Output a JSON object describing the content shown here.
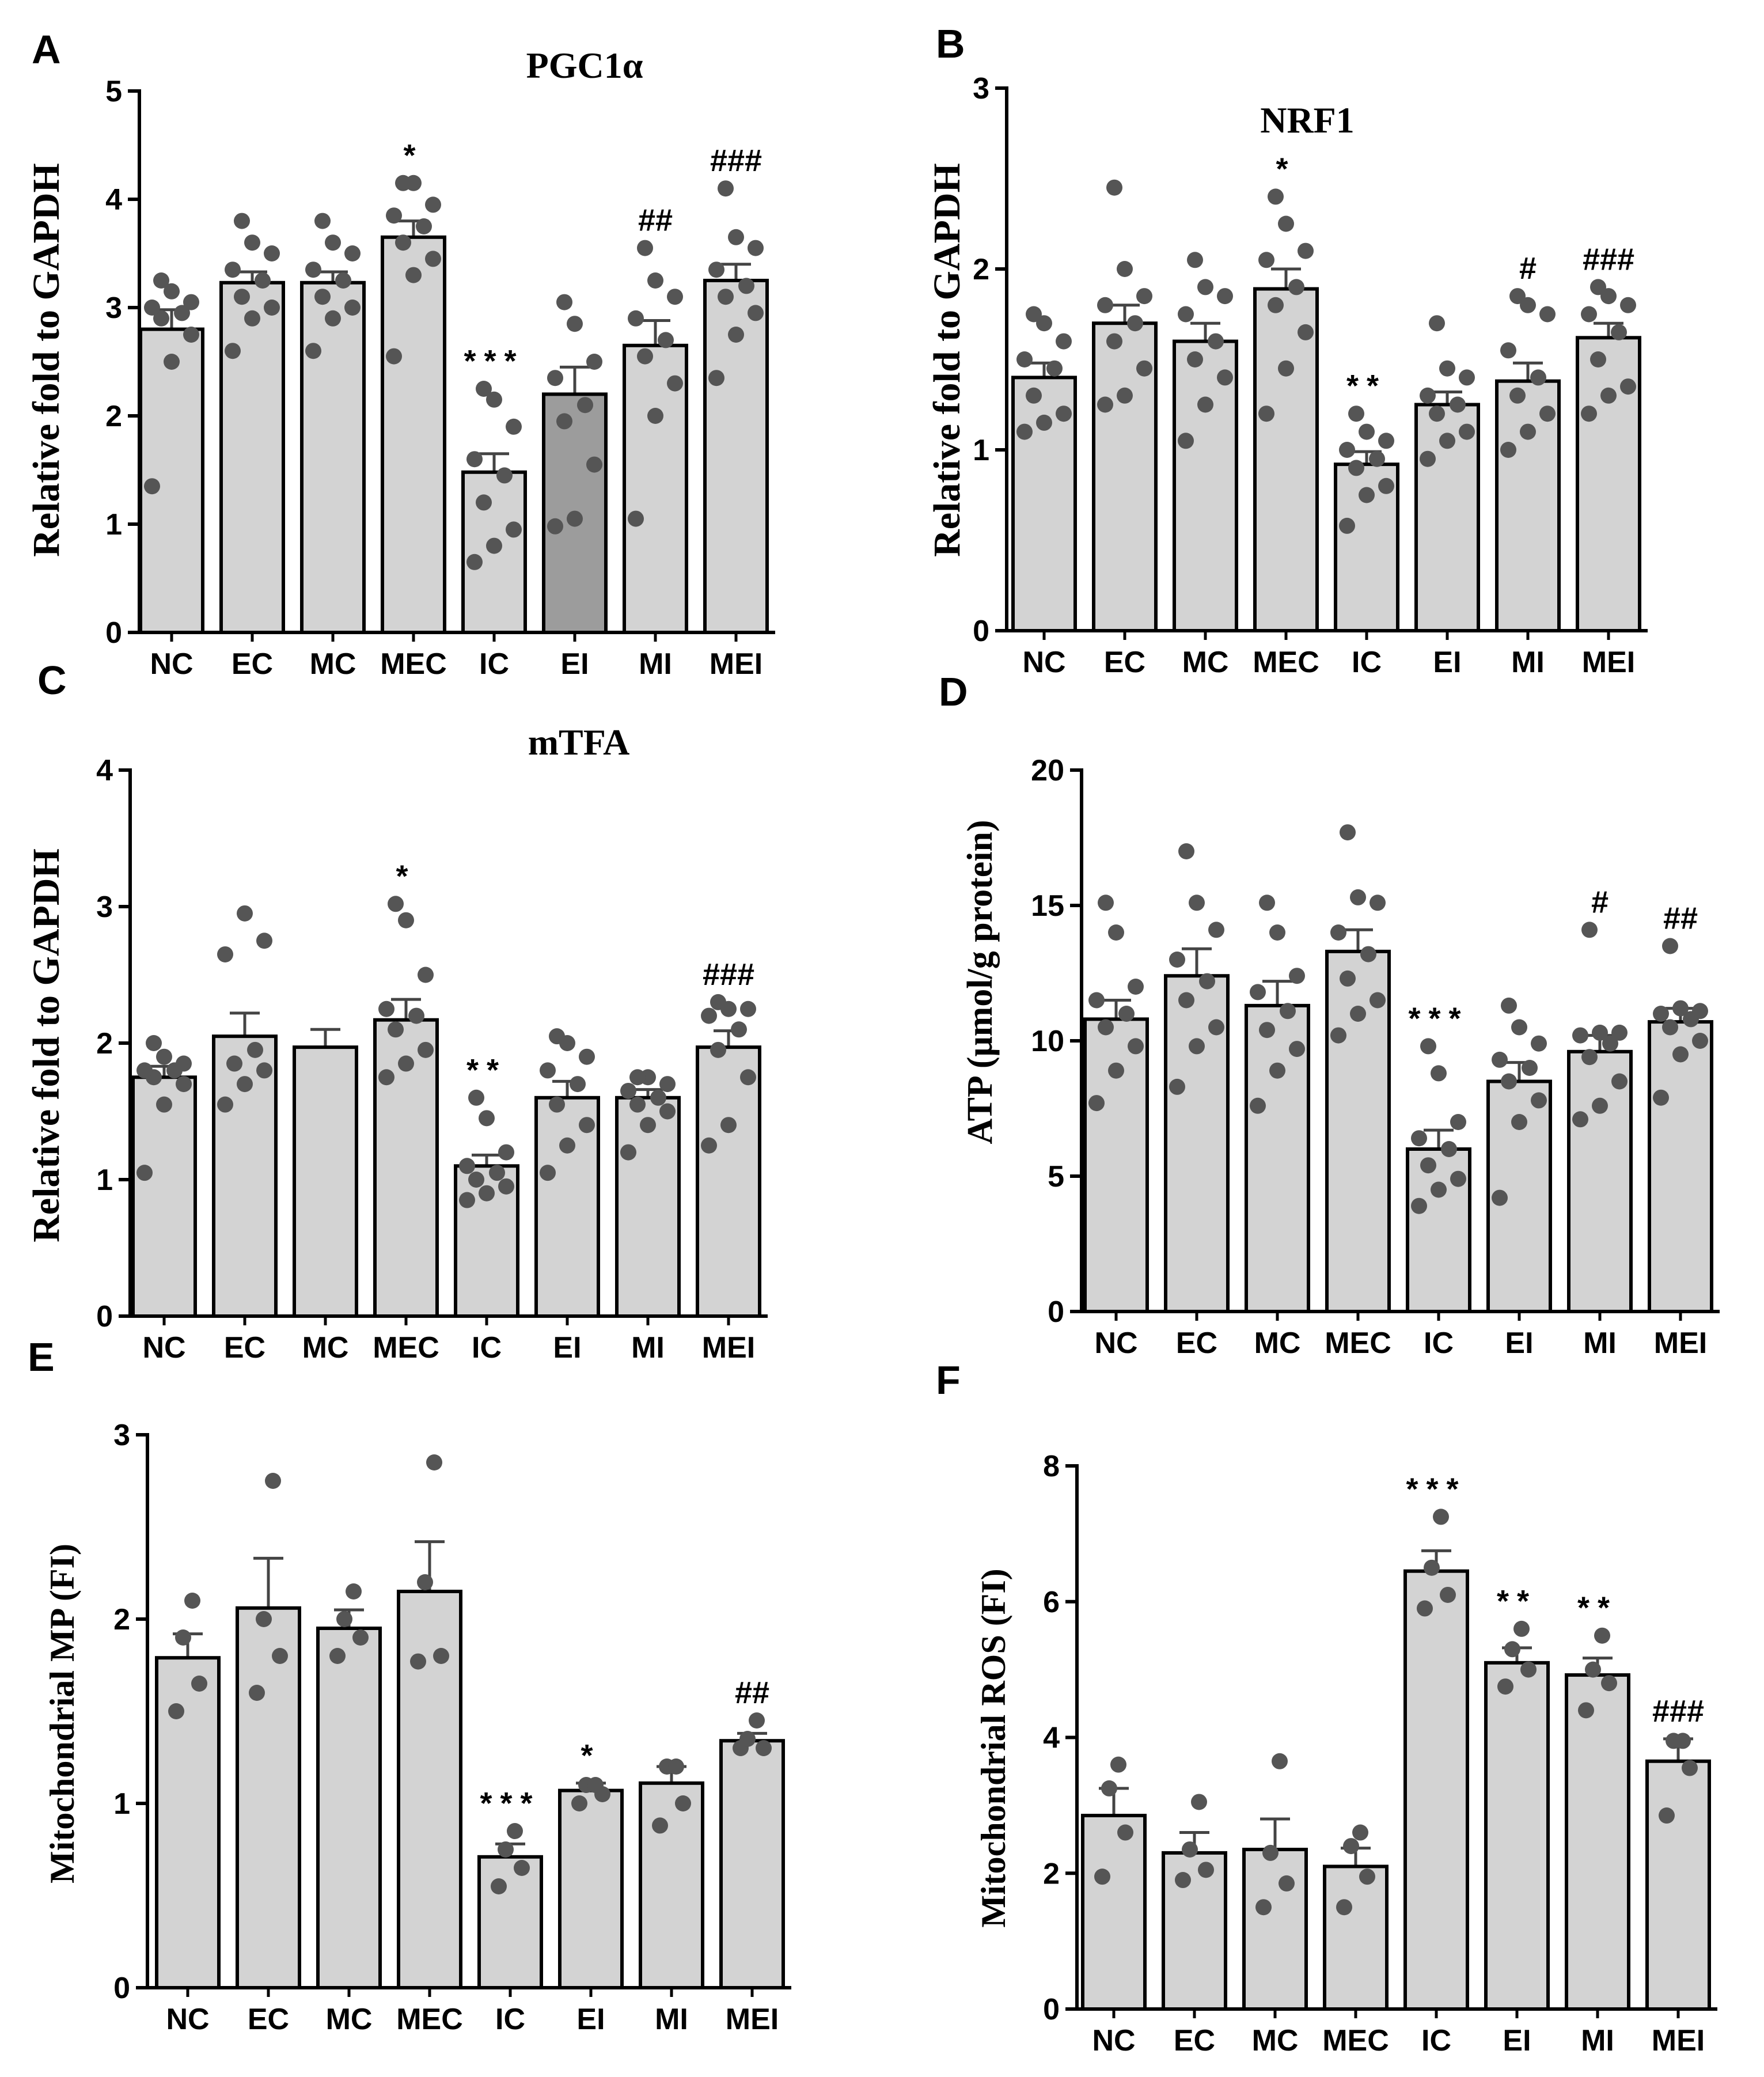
{
  "figure": {
    "colors": {
      "bar_fill": "#d3d3d3",
      "bar_fill_dark": "#9c9c9c",
      "bar_stroke": "#000000",
      "point": "#555555",
      "error_bar": "#444444",
      "axis": "#000000"
    }
  },
  "chart_data": [
    {
      "panel": "A",
      "type": "bar",
      "title": "PGC1α",
      "ylabel": "Relative fold to GAPDH",
      "xlabel": "",
      "ylim": [
        0,
        5
      ],
      "yticks": [
        "0",
        "1",
        "2",
        "3",
        "4",
        "5"
      ],
      "categories": [
        "NC",
        "EC",
        "MC",
        "MEC",
        "IC",
        "EI",
        "MI",
        "MEI"
      ],
      "values": [
        2.8,
        3.23,
        3.23,
        3.65,
        1.48,
        2.2,
        2.65,
        3.25
      ],
      "errors": [
        0.18,
        0.1,
        0.1,
        0.15,
        0.17,
        0.25,
        0.23,
        0.15
      ],
      "annotations": [
        "",
        "",
        "",
        "*",
        "***",
        "",
        "##",
        "###"
      ],
      "highlight": [
        false,
        false,
        false,
        false,
        false,
        true,
        false,
        false
      ],
      "points": [
        [
          1.35,
          2.5,
          2.75,
          2.9,
          2.95,
          3.0,
          3.05,
          3.15,
          3.25
        ],
        [
          2.6,
          2.9,
          3.0,
          3.1,
          3.25,
          3.35,
          3.5,
          3.6,
          3.8
        ],
        [
          2.6,
          2.9,
          3.0,
          3.1,
          3.25,
          3.35,
          3.5,
          3.6,
          3.8
        ],
        [
          2.55,
          3.3,
          3.45,
          3.6,
          3.75,
          3.85,
          3.95,
          4.15,
          4.15
        ],
        [
          0.65,
          0.8,
          0.95,
          1.2,
          1.45,
          1.6,
          1.9,
          2.15,
          2.25
        ],
        [
          0.98,
          1.05,
          1.55,
          1.95,
          2.1,
          2.35,
          2.5,
          2.85,
          3.05
        ],
        [
          1.05,
          2.0,
          2.3,
          2.55,
          2.7,
          2.9,
          3.1,
          3.25,
          3.55
        ],
        [
          2.35,
          2.75,
          2.95,
          3.1,
          3.2,
          3.35,
          3.55,
          3.65,
          4.1
        ]
      ]
    },
    {
      "panel": "B",
      "type": "bar",
      "title": "NRF1",
      "ylabel": "Relative fold to GAPDH",
      "xlabel": "",
      "ylim": [
        0,
        3
      ],
      "yticks": [
        "0",
        "1",
        "2",
        "3"
      ],
      "categories": [
        "NC",
        "EC",
        "MC",
        "MEC",
        "IC",
        "EI",
        "MI",
        "MEI"
      ],
      "values": [
        1.4,
        1.7,
        1.6,
        1.89,
        0.92,
        1.25,
        1.38,
        1.62
      ],
      "errors": [
        0.08,
        0.1,
        0.1,
        0.11,
        0.07,
        0.07,
        0.1,
        0.08
      ],
      "annotations": [
        "",
        "",
        "",
        "*",
        "**",
        "",
        "#",
        "###"
      ],
      "highlight": [
        false,
        false,
        false,
        false,
        false,
        false,
        false,
        false
      ],
      "points": [
        [
          1.1,
          1.15,
          1.2,
          1.3,
          1.45,
          1.5,
          1.6,
          1.7,
          1.75
        ],
        [
          1.25,
          1.3,
          1.45,
          1.6,
          1.7,
          1.8,
          1.85,
          2.0,
          2.45
        ],
        [
          1.05,
          1.25,
          1.4,
          1.5,
          1.6,
          1.75,
          1.85,
          1.9,
          2.05
        ],
        [
          1.2,
          1.45,
          1.65,
          1.8,
          1.9,
          2.05,
          2.1,
          2.25,
          2.4
        ],
        [
          0.58,
          0.75,
          0.8,
          0.9,
          0.95,
          1.0,
          1.05,
          1.1,
          1.2
        ],
        [
          0.95,
          1.05,
          1.1,
          1.2,
          1.25,
          1.3,
          1.4,
          1.45,
          1.7
        ],
        [
          1.0,
          1.1,
          1.2,
          1.3,
          1.4,
          1.55,
          1.75,
          1.8,
          1.85
        ],
        [
          1.2,
          1.3,
          1.35,
          1.5,
          1.65,
          1.75,
          1.8,
          1.85,
          1.9
        ]
      ]
    },
    {
      "panel": "C",
      "type": "bar",
      "title": "mTFA",
      "ylabel": "Relative fold to GAPDH",
      "xlabel": "",
      "ylim": [
        0,
        4
      ],
      "yticks": [
        "0",
        "1",
        "2",
        "3",
        "4"
      ],
      "categories": [
        "NC",
        "EC",
        "MC",
        "MEC",
        "IC",
        "EI",
        "MI",
        "MEI"
      ],
      "values": [
        1.75,
        2.05,
        1.97,
        2.17,
        1.1,
        1.6,
        1.6,
        1.97
      ],
      "errors": [
        0.08,
        0.17,
        0.13,
        0.15,
        0.08,
        0.12,
        0.06,
        0.12
      ],
      "annotations": [
        "",
        "",
        "",
        "*",
        "**",
        "",
        "",
        "###"
      ],
      "highlight": [
        false,
        false,
        false,
        false,
        false,
        false,
        false,
        false
      ],
      "points": [
        [
          1.05,
          1.55,
          1.7,
          1.75,
          1.8,
          1.8,
          1.85,
          1.9,
          2.0
        ],
        [
          1.55,
          1.7,
          1.8,
          1.85,
          1.95,
          2.65,
          2.75,
          2.95
        ],
        [],
        [
          1.75,
          1.85,
          1.95,
          2.1,
          2.2,
          2.25,
          2.5,
          2.9,
          3.02
        ],
        [
          0.85,
          0.9,
          0.95,
          1.0,
          1.05,
          1.1,
          1.2,
          1.45,
          1.6
        ],
        [
          1.05,
          1.25,
          1.4,
          1.55,
          1.7,
          1.8,
          1.9,
          2.0,
          2.05
        ],
        [
          1.2,
          1.4,
          1.5,
          1.55,
          1.6,
          1.65,
          1.7,
          1.75,
          1.75
        ],
        [
          1.25,
          1.4,
          1.75,
          1.95,
          2.1,
          2.2,
          2.25,
          2.25,
          2.3
        ]
      ]
    },
    {
      "panel": "D",
      "type": "bar",
      "title": "",
      "ylabel": "ATP (μmol/g protein)",
      "xlabel": "",
      "ylim": [
        0,
        20
      ],
      "yticks": [
        "0",
        "5",
        "10",
        "15",
        "20"
      ],
      "categories": [
        "NC",
        "EC",
        "MC",
        "MEC",
        "IC",
        "EI",
        "MI",
        "MEI"
      ],
      "values": [
        10.8,
        12.4,
        11.3,
        13.3,
        6.0,
        8.5,
        9.6,
        10.7
      ],
      "errors": [
        0.7,
        1.0,
        0.9,
        0.8,
        0.7,
        0.7,
        0.6,
        0.5
      ],
      "annotations": [
        "",
        "",
        "",
        "",
        "***",
        "",
        "#",
        "##"
      ],
      "highlight": [
        false,
        false,
        false,
        false,
        false,
        false,
        false,
        false
      ],
      "points": [
        [
          7.7,
          8.9,
          9.8,
          10.5,
          11.0,
          11.5,
          12.0,
          14.0,
          15.1
        ],
        [
          8.3,
          9.8,
          10.5,
          11.5,
          12.2,
          13.0,
          14.1,
          15.1,
          17.0
        ],
        [
          7.6,
          8.9,
          9.7,
          10.4,
          11.1,
          11.8,
          12.4,
          14.0,
          15.1
        ],
        [
          10.2,
          11.0,
          11.5,
          12.3,
          13.2,
          14.0,
          15.1,
          15.3,
          17.7
        ],
        [
          3.9,
          4.5,
          4.9,
          5.4,
          6.0,
          6.4,
          7.0,
          8.8,
          9.8
        ],
        [
          4.2,
          7.0,
          7.8,
          8.5,
          9.0,
          9.3,
          9.9,
          10.5,
          11.3
        ],
        [
          7.1,
          7.6,
          8.5,
          9.4,
          9.9,
          10.2,
          10.3,
          10.3,
          14.1
        ],
        [
          7.9,
          9.5,
          10.0,
          10.5,
          10.8,
          11.0,
          11.1,
          11.2,
          13.5
        ]
      ]
    },
    {
      "panel": "E",
      "type": "bar",
      "title": "",
      "ylabel": "Mitochondrial MP (FI)",
      "xlabel": "",
      "ylim": [
        0,
        3
      ],
      "yticks": [
        "0",
        "1",
        "2",
        "3"
      ],
      "categories": [
        "NC",
        "EC",
        "MC",
        "MEC",
        "IC",
        "EI",
        "MI",
        "MEI"
      ],
      "values": [
        1.79,
        2.06,
        1.95,
        2.15,
        0.71,
        1.07,
        1.11,
        1.34
      ],
      "errors": [
        0.13,
        0.27,
        0.1,
        0.27,
        0.07,
        0.04,
        0.09,
        0.04
      ],
      "annotations": [
        "",
        "",
        "",
        "",
        "***",
        "*",
        "",
        "##"
      ],
      "highlight": [
        false,
        false,
        false,
        false,
        false,
        false,
        false,
        false
      ],
      "points": [
        [
          1.5,
          1.65,
          1.9,
          2.1
        ],
        [
          1.6,
          1.8,
          2.0,
          2.75
        ],
        [
          1.8,
          1.9,
          2.0,
          2.15
        ],
        [
          1.77,
          1.8,
          2.2,
          2.85
        ],
        [
          0.55,
          0.65,
          0.75,
          0.85
        ],
        [
          1.0,
          1.05,
          1.1,
          1.1
        ],
        [
          0.88,
          1.0,
          1.2,
          1.2
        ],
        [
          1.3,
          1.3,
          1.35,
          1.45
        ]
      ]
    },
    {
      "panel": "F",
      "type": "bar",
      "title": "",
      "ylabel": "Mitochondrial ROS (FI)",
      "xlabel": "",
      "ylim": [
        0,
        8
      ],
      "yticks": [
        "0",
        "2",
        "4",
        "6",
        "8"
      ],
      "categories": [
        "NC",
        "EC",
        "MC",
        "MEC",
        "IC",
        "EI",
        "MI",
        "MEI"
      ],
      "values": [
        2.85,
        2.3,
        2.35,
        2.1,
        6.45,
        5.1,
        4.92,
        3.65
      ],
      "errors": [
        0.4,
        0.3,
        0.45,
        0.27,
        0.3,
        0.22,
        0.25,
        0.33
      ],
      "annotations": [
        "",
        "",
        "",
        "",
        "***",
        "**",
        "**",
        "###"
      ],
      "highlight": [
        false,
        false,
        false,
        false,
        false,
        false,
        false,
        false
      ],
      "points": [
        [
          1.95,
          2.6,
          3.25,
          3.6
        ],
        [
          1.9,
          2.05,
          2.35,
          3.05
        ],
        [
          1.5,
          1.85,
          2.3,
          3.65
        ],
        [
          1.5,
          1.95,
          2.4,
          2.6
        ],
        [
          5.9,
          6.1,
          6.5,
          7.25
        ],
        [
          4.75,
          5.0,
          5.3,
          5.6
        ],
        [
          4.4,
          4.8,
          5.0,
          5.5
        ],
        [
          2.85,
          3.55,
          3.95,
          3.95
        ]
      ]
    }
  ]
}
